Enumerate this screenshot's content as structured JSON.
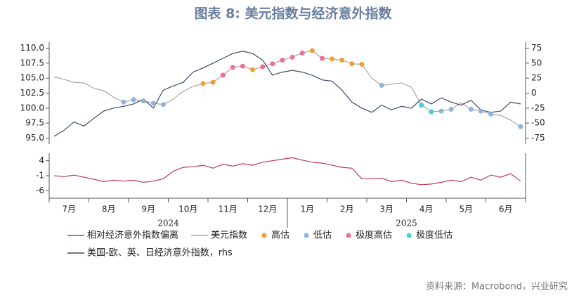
{
  "chart_data": [
    {
      "type": "line",
      "title": "图表 8:  美元指数与经济意外指数",
      "ylim": [
        94,
        111
      ],
      "yticks": [
        {
          "value": 95,
          "label": "95.0"
        },
        {
          "value": 97.5,
          "label": "97.5"
        },
        {
          "value": 100,
          "label": "100.0"
        },
        {
          "value": 102.5,
          "label": "102.5"
        },
        {
          "value": 105,
          "label": "105.0"
        },
        {
          "value": 107.5,
          "label": "107.5"
        },
        {
          "value": 110,
          "label": "110.0"
        }
      ],
      "y2lim": [
        -85,
        85
      ],
      "y2ticks": [
        -75,
        -50,
        -25,
        0,
        25,
        50,
        75
      ],
      "series": [
        {
          "name": "美元指数",
          "type": "line",
          "axis": "y",
          "color": "#a8a8a8",
          "values": [
            105.2,
            104.8,
            104.3,
            104.2,
            103.3,
            102.9,
            101.8,
            101.0,
            101.4,
            101.2,
            100.8,
            100.6,
            101.5,
            102.8,
            103.6,
            104.1,
            104.3,
            105.5,
            106.8,
            107.0,
            106.4,
            106.9,
            107.4,
            108.0,
            108.5,
            109.2,
            109.6,
            108.3,
            108.2,
            108.0,
            107.4,
            107.3,
            105.0,
            103.8,
            104.0,
            104.2,
            103.5,
            100.5,
            99.4,
            99.5,
            99.8,
            100.9,
            99.8,
            99.5,
            99.0,
            98.8,
            98.0,
            96.9
          ]
        },
        {
          "name": "美国-欧、英、日经济意外指数，rhs",
          "type": "line",
          "axis": "y2",
          "color": "#3d4a6b",
          "values": [
            -72,
            -62,
            -48,
            -55,
            -42,
            -30,
            -25,
            -22,
            -18,
            -10,
            -25,
            5,
            12,
            18,
            35,
            42,
            50,
            58,
            66,
            70,
            66,
            55,
            30,
            35,
            38,
            35,
            30,
            22,
            20,
            5,
            -15,
            -25,
            -32,
            -20,
            -28,
            -22,
            -25,
            -10,
            -18,
            -8,
            -15,
            -20,
            -12,
            -28,
            -32,
            -30,
            -15,
            -18
          ]
        },
        {
          "name": "高估",
          "type": "scatter",
          "axis": "y",
          "color": "#f0a030",
          "values": [
            null,
            null,
            null,
            null,
            null,
            null,
            null,
            null,
            null,
            null,
            null,
            null,
            null,
            null,
            null,
            104.1,
            104.3,
            null,
            null,
            null,
            106.4,
            null,
            null,
            null,
            null,
            null,
            109.6,
            null,
            108.2,
            108.0,
            107.4,
            107.3,
            null,
            null,
            null,
            null,
            null,
            null,
            null,
            null,
            null,
            null,
            null,
            null,
            null,
            null,
            null,
            null
          ]
        },
        {
          "name": "低估",
          "type": "scatter",
          "axis": "y",
          "color": "#8fb4d9",
          "values": [
            null,
            null,
            null,
            null,
            null,
            null,
            null,
            101.0,
            101.4,
            101.2,
            100.8,
            100.6,
            null,
            null,
            null,
            null,
            null,
            null,
            null,
            null,
            null,
            null,
            null,
            null,
            null,
            null,
            null,
            null,
            null,
            null,
            null,
            null,
            null,
            103.8,
            null,
            null,
            null,
            null,
            null,
            99.5,
            99.8,
            null,
            99.8,
            99.5,
            99.0,
            null,
            null,
            96.9
          ]
        },
        {
          "name": "极度高估",
          "type": "scatter",
          "axis": "y",
          "color": "#f06e8e",
          "values": [
            null,
            null,
            null,
            null,
            null,
            null,
            null,
            null,
            null,
            null,
            null,
            null,
            null,
            null,
            null,
            null,
            null,
            105.5,
            106.8,
            107.0,
            null,
            106.9,
            107.4,
            108.0,
            108.5,
            109.2,
            null,
            108.3,
            null,
            null,
            null,
            null,
            null,
            null,
            null,
            null,
            null,
            null,
            null,
            null,
            null,
            null,
            null,
            null,
            null,
            null,
            null,
            null
          ]
        },
        {
          "name": "极度低估",
          "type": "scatter",
          "axis": "y",
          "color": "#40d0d8",
          "values": [
            null,
            null,
            null,
            null,
            null,
            null,
            null,
            null,
            null,
            null,
            null,
            null,
            null,
            null,
            null,
            null,
            null,
            null,
            null,
            null,
            null,
            null,
            null,
            null,
            null,
            null,
            null,
            null,
            null,
            null,
            null,
            null,
            null,
            null,
            null,
            null,
            null,
            100.5,
            99.4,
            null,
            null,
            null,
            null,
            null,
            null,
            null,
            null,
            null
          ]
        }
      ]
    },
    {
      "type": "line",
      "ylim": [
        -8.5,
        6.5
      ],
      "yticks": [
        -6,
        -1,
        4
      ],
      "categories": [
        null,
        "7月",
        null,
        null,
        null,
        "8月",
        null,
        null,
        null,
        "9月",
        null,
        null,
        null,
        "10月",
        null,
        null,
        null,
        "11月",
        null,
        null,
        null,
        "12月",
        null,
        null,
        null,
        "1月",
        null,
        null,
        null,
        "2月",
        null,
        null,
        null,
        "3月",
        null,
        null,
        null,
        "4月",
        null,
        null,
        null,
        "5月",
        null,
        null,
        null,
        "6月",
        null,
        null
      ],
      "years": [
        "2024",
        "2025"
      ],
      "series": [
        {
          "name": "相对经济意外指数偏离",
          "type": "line",
          "axis": "y",
          "color": "#c0394b",
          "values": [
            -1,
            -1.3,
            -0.8,
            -1.5,
            -2.2,
            -3.0,
            -2.5,
            -2.8,
            -2.5,
            -3.2,
            -2.8,
            -2.0,
            0.5,
            1.8,
            2.0,
            2.5,
            1.5,
            2.8,
            2.2,
            3.0,
            2.5,
            3.5,
            4.0,
            4.5,
            5.0,
            4.2,
            3.5,
            3.2,
            2.5,
            1.8,
            1.5,
            -2.0,
            -2.0,
            -1.8,
            -3.0,
            -2.5,
            -3.5,
            -4.0,
            -3.8,
            -3.2,
            -2.5,
            -3.0,
            -1.5,
            -2.5,
            -0.8,
            -1.5,
            -0.3,
            -2.8
          ]
        }
      ],
      "source": "资料来源：Macrobond，兴业研究"
    }
  ]
}
